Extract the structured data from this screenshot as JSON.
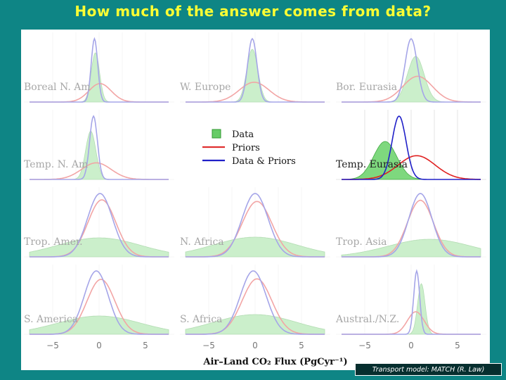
{
  "title": "How much of the answer comes from data?",
  "credit": "Transport model: MATCH (R. Law)",
  "chart_data": {
    "type": "area",
    "xlabel": "Air–Land CO₂ Flux (PgCyr⁻¹)",
    "xlim": [
      -7.5,
      7.5
    ],
    "xticks": [
      -5,
      0,
      5
    ],
    "xtick_labels": [
      "−5",
      "0",
      "5"
    ],
    "grid": true,
    "legend": {
      "placement": "center",
      "entries": [
        {
          "label": "Data",
          "color": "#66cc66",
          "kind": "fill"
        },
        {
          "label": "Priors",
          "color": "#e03030",
          "kind": "line"
        },
        {
          "label": "Data & Priors",
          "color": "#2020c8",
          "kind": "line"
        }
      ]
    },
    "colors": {
      "data_fill": "#7ed87e",
      "data_edge": "#44aa44",
      "prior": "#e02020",
      "posterior": "#2020c8"
    },
    "panels": [
      {
        "name": "Boreal N. Am",
        "faded": true,
        "data": {
          "mean": -0.4,
          "sd": 0.45
        },
        "prior": {
          "mean": 0.1,
          "sd": 1.2
        },
        "posterior": {
          "mean": -0.5,
          "sd": 0.35
        }
      },
      {
        "name": "W. Europe",
        "faded": true,
        "data": {
          "mean": -0.3,
          "sd": 0.6
        },
        "prior": {
          "mean": -0.1,
          "sd": 1.6
        },
        "posterior": {
          "mean": -0.3,
          "sd": 0.5
        }
      },
      {
        "name": "Bor. Eurasia",
        "faded": true,
        "data": {
          "mean": 0.5,
          "sd": 0.9
        },
        "prior": {
          "mean": 0.7,
          "sd": 1.6
        },
        "posterior": {
          "mean": 0.0,
          "sd": 0.65
        }
      },
      {
        "name": "Temp. N. Am",
        "faded": true,
        "data": {
          "mean": -0.9,
          "sd": 0.55
        },
        "prior": {
          "mean": -0.3,
          "sd": 1.6
        },
        "posterior": {
          "mean": -0.6,
          "sd": 0.42
        }
      },
      {
        "name": "Temp. Eurasia",
        "faded": false,
        "data": {
          "mean": -2.8,
          "sd": 1.25
        },
        "prior": {
          "mean": 0.6,
          "sd": 2.0
        },
        "posterior": {
          "mean": -1.3,
          "sd": 0.75
        }
      },
      {
        "name": "Trop. Amer.",
        "faded": true,
        "data": {
          "mean": 0.0,
          "sd": 4.5
        },
        "prior": {
          "mean": 0.3,
          "sd": 1.5
        },
        "posterior": {
          "mean": 0.1,
          "sd": 1.35
        }
      },
      {
        "name": "N. Africa",
        "faded": true,
        "data": {
          "mean": 0.0,
          "sd": 4.5
        },
        "prior": {
          "mean": 0.2,
          "sd": 1.6
        },
        "posterior": {
          "mean": 0.0,
          "sd": 1.4
        }
      },
      {
        "name": "Trop. Asia",
        "faded": true,
        "data": {
          "mean": 2.0,
          "sd": 4.5
        },
        "prior": {
          "mean": 1.0,
          "sd": 1.4
        },
        "posterior": {
          "mean": 1.0,
          "sd": 1.25
        }
      },
      {
        "name": "S. America",
        "faded": true,
        "data": {
          "mean": 0.0,
          "sd": 4.5
        },
        "prior": {
          "mean": 0.2,
          "sd": 1.5
        },
        "posterior": {
          "mean": -0.3,
          "sd": 1.3
        }
      },
      {
        "name": "S. Africa",
        "faded": true,
        "data": {
          "mean": 0.0,
          "sd": 4.5
        },
        "prior": {
          "mean": 0.2,
          "sd": 1.6
        },
        "posterior": {
          "mean": -0.2,
          "sd": 1.4
        }
      },
      {
        "name": "Austral./N.Z.",
        "faded": true,
        "data": {
          "mean": 1.1,
          "sd": 0.4
        },
        "prior": {
          "mean": 0.5,
          "sd": 0.9
        },
        "posterior": {
          "mean": 0.6,
          "sd": 0.32
        }
      }
    ]
  }
}
